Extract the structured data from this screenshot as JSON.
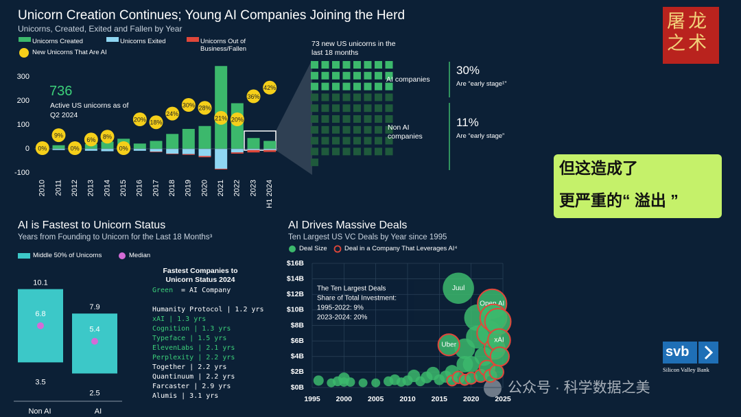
{
  "chart_data": [
    {
      "type": "bar",
      "stacked": true,
      "title": "Unicorn Creation Continues; Young AI Companies Joining the Herd",
      "subtitle": "Unicorns, Created, Exited and Fallen by Year",
      "categories": [
        "2010",
        "2011",
        "2012",
        "2013",
        "2014",
        "2015",
        "2016",
        "2017",
        "2018",
        "2019",
        "2020",
        "2021",
        "2022",
        "2023",
        "H1 2024"
      ],
      "series": [
        {
          "name": "Unicorns Created",
          "color": "#3cb86c",
          "values": [
            3,
            15,
            10,
            20,
            30,
            42,
            22,
            33,
            62,
            83,
            95,
            345,
            190,
            45,
            33
          ]
        },
        {
          "name": "Unicorns Exited",
          "color": "#8fd6f2",
          "values": [
            -2,
            -5,
            -5,
            -8,
            -10,
            -5,
            -8,
            -12,
            -20,
            -22,
            -30,
            -83,
            -15,
            -5,
            -5
          ]
        },
        {
          "name": "Unicorns Out of Business/Fallen",
          "color": "#e0473a",
          "values": [
            0,
            0,
            0,
            0,
            0,
            0,
            0,
            -2,
            -2,
            -3,
            -5,
            -3,
            -5,
            -10,
            -8
          ]
        }
      ],
      "ai_share": {
        "name": "New Unicorns That Are AI",
        "color": "#f5cf1a",
        "values": [
          0,
          9,
          0,
          6,
          8,
          0,
          20,
          18,
          24,
          30,
          28,
          21,
          20,
          36,
          42
        ],
        "value_labels": [
          "0%",
          "9%",
          "0%",
          "6%",
          "8%",
          "0%",
          "20%",
          "18%",
          "24%",
          "30%",
          "28%",
          "21%",
          "20%",
          "36%",
          "42%"
        ]
      },
      "ylim": [
        -110,
        350
      ],
      "yticks": [
        -100,
        0,
        100,
        200,
        300
      ],
      "grid": false,
      "annotation": {
        "value": "736",
        "text": "Active US unicorns as of Q2 2024"
      }
    },
    {
      "type": "range",
      "title": "AI is Fastest to Unicorn Status",
      "subtitle": "Years from Founding to Unicorn for the Last 18 Months³",
      "categories": [
        "Non AI",
        "AI"
      ],
      "range_name": "Middle 50% of Unicorns",
      "range_color": "#3cc8c8",
      "median_name": "Median",
      "median_color": "#d46bd6",
      "low": [
        3.5,
        2.5
      ],
      "high": [
        10.1,
        7.9
      ],
      "median": [
        6.8,
        5.4
      ],
      "ylim": [
        0,
        11
      ]
    },
    {
      "type": "scatter",
      "title": "AI Drives Massive Deals",
      "subtitle": "Ten Largest US VC Deals by Year since 1995",
      "series": [
        {
          "name": "Deal Size",
          "color": "#3cb86c",
          "x": [
            1996,
            1998,
            1999,
            2000,
            2000,
            2001,
            2003,
            2005,
            2007,
            2008,
            2009,
            2010,
            2011,
            2012,
            2013,
            2014,
            2015,
            2016,
            2017,
            2018,
            2019,
            2019,
            2020,
            2021,
            2021,
            2022
          ],
          "values": [
            0.9,
            0.6,
            0.8,
            1.2,
            0.7,
            0.7,
            0.6,
            0.6,
            0.8,
            1.0,
            0.7,
            0.9,
            1.5,
            0.8,
            1.3,
            1.8,
            1.0,
            1.4,
            2.0,
            12.8,
            5.0,
            3.0,
            3.0,
            9.0,
            6.5,
            4.0
          ],
          "labels": [
            null,
            null,
            null,
            null,
            null,
            null,
            null,
            null,
            null,
            null,
            null,
            null,
            null,
            null,
            null,
            null,
            null,
            null,
            null,
            "Juul",
            null,
            null,
            null,
            null,
            null,
            null
          ]
        },
        {
          "name": "Deal in a Company That Leverages AI⁴",
          "color": "#e0473a",
          "x": [
            2016.5,
            2017,
            2018,
            2019,
            2020,
            2021.5,
            2022.5,
            2022.8,
            2023,
            2023.3,
            2023.5,
            2023.7,
            2024,
            2024.2,
            2024.4,
            2024.5
          ],
          "values": [
            5.5,
            0.9,
            1.3,
            1.0,
            1.2,
            1.5,
            2.5,
            7.0,
            1.5,
            10.8,
            9.0,
            5.0,
            2.0,
            8.5,
            6.1,
            4.0
          ],
          "labels": [
            "Uber",
            null,
            null,
            null,
            null,
            null,
            null,
            null,
            null,
            "Open AI",
            null,
            null,
            null,
            null,
            "xAI",
            null
          ]
        }
      ],
      "xlim": [
        1995,
        2025
      ],
      "xticks": [
        1995,
        2000,
        2005,
        2010,
        2015,
        2020,
        2025
      ],
      "ylim": [
        0,
        16
      ],
      "yticks": [
        {
          "value": 0,
          "label": "$0B"
        },
        {
          "value": 2,
          "label": "$2B"
        },
        {
          "value": 4,
          "label": "$4B"
        },
        {
          "value": 6,
          "label": "$6B"
        },
        {
          "value": 8,
          "label": "$8B"
        },
        {
          "value": 10,
          "label": "$10B"
        },
        {
          "value": 12,
          "label": "$12B"
        },
        {
          "value": 14,
          "label": "$14B"
        },
        {
          "value": 16,
          "label": "$16B"
        }
      ],
      "grid": true,
      "annotation": [
        "The Ten Largest Deals",
        "Share of Total Investment:",
        "1995-2022: 9%",
        "2023-2024: 20%"
      ]
    }
  ],
  "waffle": {
    "title": "73 new US unicorns in the last 18 months",
    "groups": [
      {
        "label": "AI companies",
        "count": 24,
        "color": "#3cb86c",
        "pct": "30%",
        "note": "Are “early stage¹”"
      },
      {
        "label": "Non AI companies",
        "count": 49,
        "color": "#1f5a3c",
        "pct": "11%",
        "note": "Are “early stage”"
      }
    ]
  },
  "fastest": {
    "title": "Fastest Companies to Unicorn Status 2024",
    "key": "Green",
    "key_text": "= AI Company",
    "entries": [
      {
        "text": "Humanity Protocol | 1.2 yrs",
        "ai": false
      },
      {
        "text": "xAI | 1.3 yrs",
        "ai": true
      },
      {
        "text": "Cognition | 1.3 yrs",
        "ai": true
      },
      {
        "text": "Typeface | 1.5 yrs",
        "ai": true
      },
      {
        "text": "ElevenLabs | 2.1 yrs",
        "ai": true
      },
      {
        "text": "Perplexity | 2.2 yrs",
        "ai": true
      },
      {
        "text": "Together | 2.2 yrs",
        "ai": false
      },
      {
        "text": "Quantinuum | 2.2 yrs",
        "ai": false
      },
      {
        "text": "Farcaster | 2.9 yrs",
        "ai": false
      },
      {
        "text": "Alumis | 3.1 yrs",
        "ai": false
      }
    ]
  },
  "callout": [
    "但这造成了",
    "更严重的“ 溢出 ”"
  ],
  "logo": [
    "屠龙",
    "之术"
  ],
  "svb": {
    "mark": "svb",
    "name": "Silicon Valley Bank"
  },
  "watermark": "公众号 · 科学数据之美"
}
